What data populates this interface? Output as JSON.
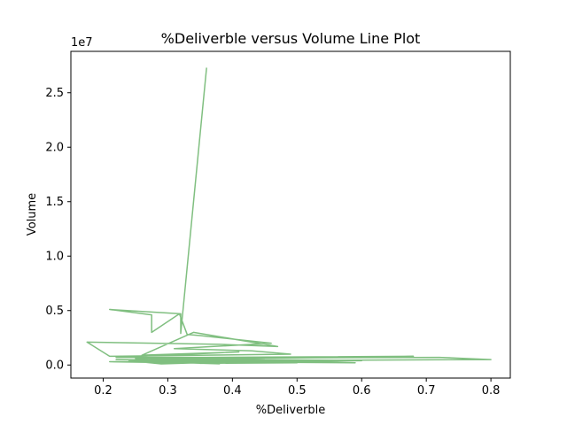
{
  "chart_data": {
    "type": "line",
    "title": "%Deliverble versus Volume Line Plot",
    "xlabel": "%Deliverble",
    "ylabel": "Volume",
    "y_offset_label": "1e7",
    "xlim": [
      0.15,
      0.83
    ],
    "ylim": [
      -1200000,
      28800000
    ],
    "x_ticks": [
      0.2,
      0.3,
      0.4,
      0.5,
      0.6,
      0.7,
      0.8
    ],
    "x_tick_labels": [
      "0.2",
      "0.3",
      "0.4",
      "0.5",
      "0.6",
      "0.7",
      "0.8"
    ],
    "y_ticks": [
      0,
      5000000,
      10000000,
      15000000,
      20000000,
      25000000
    ],
    "y_tick_labels": [
      "0.0",
      "0.5",
      "1.0",
      "1.5",
      "2.0",
      "2.5"
    ],
    "grid": false,
    "line_color": "#80bf80",
    "series": [
      {
        "x": [
          0.36,
          0.32,
          0.32,
          0.21,
          0.275,
          0.275,
          0.318,
          0.33,
          0.35,
          0.46,
          0.31,
          0.43,
          0.49,
          0.21,
          0.175,
          0.38,
          0.47,
          0.34,
          0.26,
          0.41,
          0.22,
          0.57,
          0.3,
          0.41,
          0.39,
          0.68,
          0.36,
          0.25,
          0.72,
          0.8,
          0.42,
          0.22,
          0.5,
          0.35,
          0.59,
          0.33,
          0.4,
          0.29,
          0.45,
          0.36,
          0.52,
          0.27,
          0.6,
          0.34,
          0.43,
          0.3,
          0.38,
          0.28,
          0.47,
          0.36,
          0.21,
          0.32,
          0.4,
          0.29,
          0.24,
          0.36,
          0.5,
          0.35,
          0.41
        ],
        "y": [
          27300000,
          2900000,
          4700000,
          5100000,
          4600000,
          3000000,
          4700000,
          2800000,
          2700000,
          2000000,
          1500000,
          1300000,
          1000000,
          800000,
          2100000,
          1900000,
          1700000,
          3000000,
          900000,
          1200000,
          700000,
          700000,
          600000,
          500000,
          600000,
          800000,
          700000,
          600000,
          700000,
          500000,
          400000,
          500000,
          300000,
          600000,
          200000,
          300000,
          400000,
          700000,
          500000,
          200000,
          300000,
          600000,
          400000,
          200000,
          500000,
          400000,
          100000,
          300000,
          200000,
          400000,
          300000,
          200000,
          300000,
          100000,
          400000,
          300000,
          200000,
          150000,
          200000
        ]
      }
    ]
  }
}
